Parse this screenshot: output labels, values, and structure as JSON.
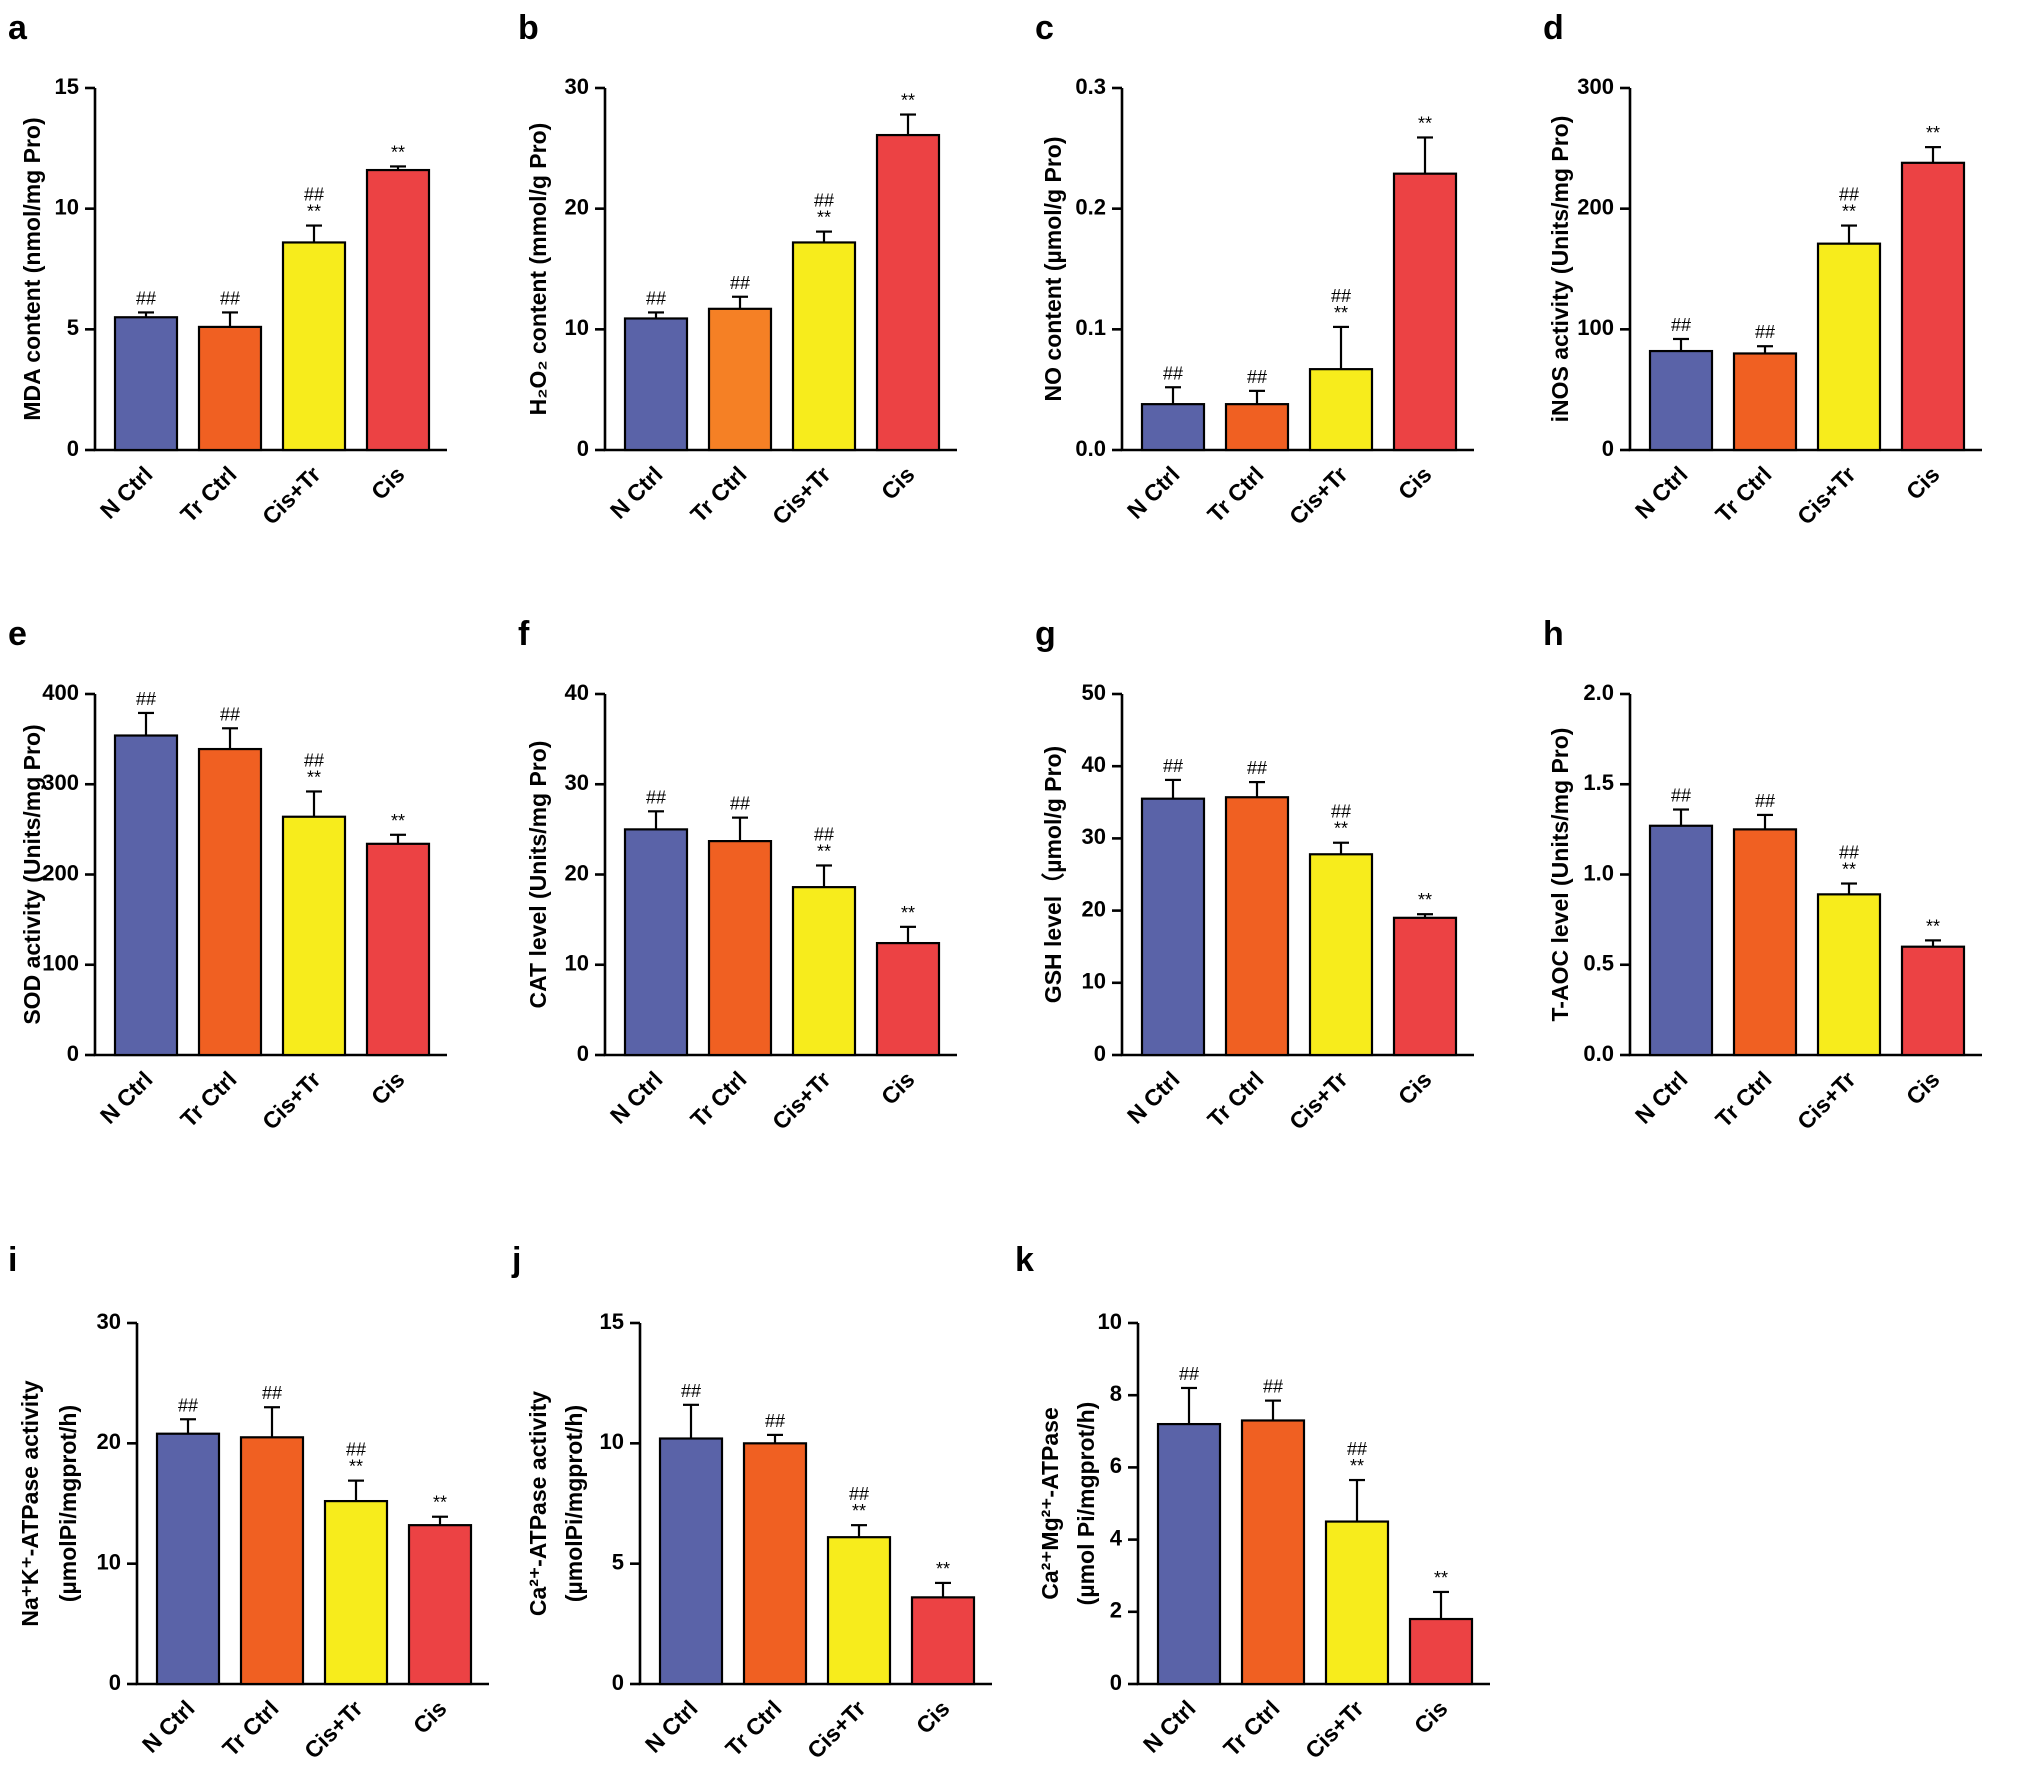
{
  "chart_data": [
    {
      "panel": "a",
      "type": "bar",
      "categories": [
        "N Ctrl",
        "Tr Ctrl",
        "Cis+Tr",
        "Cis"
      ],
      "values": [
        5.5,
        5.1,
        8.6,
        11.6
      ],
      "errors": [
        0.2,
        0.6,
        0.7,
        0.15
      ],
      "significance": [
        [
          "##"
        ],
        [
          "##"
        ],
        [
          "##",
          "**"
        ],
        [
          "**"
        ]
      ],
      "ylabel_lines": [
        "MDA content (nmol/mg Pro)"
      ],
      "ylim": [
        0,
        15
      ],
      "yticks": [
        "0",
        "5",
        "10",
        "15"
      ],
      "colors": [
        "#5a63a8",
        "#f06022",
        "#f7ec1c",
        "#ec4244"
      ]
    },
    {
      "panel": "b",
      "type": "bar",
      "categories": [
        "N Ctrl",
        "Tr Ctrl",
        "Cis+Tr",
        "Cis"
      ],
      "values": [
        10.9,
        11.7,
        17.2,
        26.1
      ],
      "errors": [
        0.5,
        1.0,
        0.9,
        1.7
      ],
      "significance": [
        [
          "##"
        ],
        [
          "##"
        ],
        [
          "##",
          "**"
        ],
        [
          "**"
        ]
      ],
      "ylabel_lines": [
        "H₂O₂ content (mmol/g Pro)"
      ],
      "ylim": [
        0,
        30
      ],
      "yticks": [
        "0",
        "10",
        "20",
        "30"
      ],
      "colors": [
        "#5a63a8",
        "#f58025",
        "#f7ec1c",
        "#ec4244"
      ]
    },
    {
      "panel": "c",
      "type": "bar",
      "categories": [
        "N Ctrl",
        "Tr Ctrl",
        "Cis+Tr",
        "Cis"
      ],
      "values": [
        0.038,
        0.038,
        0.067,
        0.229
      ],
      "errors": [
        0.014,
        0.011,
        0.035,
        0.03
      ],
      "significance": [
        [
          "##"
        ],
        [
          "##"
        ],
        [
          "##",
          "**"
        ],
        [
          "**"
        ]
      ],
      "ylabel_lines": [
        "NO content (µmol/g Pro)"
      ],
      "ylim": [
        0,
        0.3
      ],
      "yticks": [
        "0.0",
        "0.1",
        "0.2",
        "0.3"
      ],
      "colors": [
        "#5a63a8",
        "#f06022",
        "#f7ec1c",
        "#ec4244"
      ]
    },
    {
      "panel": "d",
      "type": "bar",
      "categories": [
        "N Ctrl",
        "Tr Ctrl",
        "Cis+Tr",
        "Cis"
      ],
      "values": [
        82,
        80,
        171,
        238
      ],
      "errors": [
        10,
        6,
        15,
        13
      ],
      "significance": [
        [
          "##"
        ],
        [
          "##"
        ],
        [
          "##",
          "**"
        ],
        [
          "**"
        ]
      ],
      "ylabel_lines": [
        "iNOS activity (Units/mg Pro)"
      ],
      "ylim": [
        0,
        300
      ],
      "yticks": [
        "0",
        "100",
        "200",
        "300"
      ],
      "colors": [
        "#5a63a8",
        "#f06022",
        "#f7ec1c",
        "#ec4244"
      ]
    },
    {
      "panel": "e",
      "type": "bar",
      "categories": [
        "N Ctrl",
        "Tr Ctrl",
        "Cis+Tr",
        "Cis"
      ],
      "values": [
        354,
        339,
        264,
        234
      ],
      "errors": [
        25,
        23,
        28,
        10
      ],
      "significance": [
        [
          "##"
        ],
        [
          "##"
        ],
        [
          "##",
          "**"
        ],
        [
          "**"
        ]
      ],
      "ylabel_lines": [
        "SOD activity (Units/mg Pro)"
      ],
      "ylim": [
        0,
        400
      ],
      "yticks": [
        "0",
        "100",
        "200",
        "300",
        "400"
      ],
      "colors": [
        "#5a63a8",
        "#f06022",
        "#f7ec1c",
        "#ec4244"
      ]
    },
    {
      "panel": "f",
      "type": "bar",
      "categories": [
        "N Ctrl",
        "Tr Ctrl",
        "Cis+Tr",
        "Cis"
      ],
      "values": [
        25.0,
        23.7,
        18.6,
        12.4
      ],
      "errors": [
        2.0,
        2.6,
        2.4,
        1.8
      ],
      "significance": [
        [
          "##"
        ],
        [
          "##"
        ],
        [
          "##",
          "**"
        ],
        [
          "**"
        ]
      ],
      "ylabel_lines": [
        "CAT level (Units/mg Pro)"
      ],
      "ylim": [
        0,
        40
      ],
      "yticks": [
        "0",
        "10",
        "20",
        "30",
        "40"
      ],
      "colors": [
        "#5a63a8",
        "#f06022",
        "#f7ec1c",
        "#ec4244"
      ]
    },
    {
      "panel": "g",
      "type": "bar",
      "categories": [
        "N Ctrl",
        "Tr Ctrl",
        "Cis+Tr",
        "Cis"
      ],
      "values": [
        35.5,
        35.7,
        27.8,
        19.0
      ],
      "errors": [
        2.6,
        2.1,
        1.6,
        0.5
      ],
      "significance": [
        [
          "##"
        ],
        [
          "##"
        ],
        [
          "##",
          "**"
        ],
        [
          "**"
        ]
      ],
      "ylabel_lines": [
        "GSH level（µmol/g Pro)"
      ],
      "ylim": [
        0,
        50
      ],
      "yticks": [
        "0",
        "10",
        "20",
        "30",
        "40",
        "50"
      ],
      "colors": [
        "#5a63a8",
        "#f06022",
        "#f7ec1c",
        "#ec4244"
      ]
    },
    {
      "panel": "h",
      "type": "bar",
      "categories": [
        "N Ctrl",
        "Tr Ctrl",
        "Cis+Tr",
        "Cis"
      ],
      "values": [
        1.27,
        1.25,
        0.89,
        0.6
      ],
      "errors": [
        0.09,
        0.08,
        0.06,
        0.035
      ],
      "significance": [
        [
          "##"
        ],
        [
          "##"
        ],
        [
          "##",
          "**"
        ],
        [
          "**"
        ]
      ],
      "ylabel_lines": [
        "T-AOC level (Units/mg Pro)"
      ],
      "ylim": [
        0,
        2.0
      ],
      "yticks": [
        "0.0",
        "0.5",
        "1.0",
        "1.5",
        "2.0"
      ],
      "colors": [
        "#5a63a8",
        "#f06022",
        "#f7ec1c",
        "#ec4244"
      ]
    },
    {
      "panel": "i",
      "type": "bar",
      "categories": [
        "N Ctrl",
        "Tr Ctrl",
        "Cis+Tr",
        "Cis"
      ],
      "values": [
        20.8,
        20.5,
        15.2,
        13.2
      ],
      "errors": [
        1.2,
        2.5,
        1.7,
        0.7
      ],
      "significance": [
        [
          "##"
        ],
        [
          "##"
        ],
        [
          "##",
          "**"
        ],
        [
          "**"
        ]
      ],
      "ylabel_lines": [
        "Na⁺K⁺-ATPase activity",
        "(µmolPi/mgprot/h)"
      ],
      "ylim": [
        0,
        30
      ],
      "yticks": [
        "0",
        "10",
        "20",
        "30"
      ],
      "colors": [
        "#5a63a8",
        "#f06022",
        "#f7ec1c",
        "#ec4244"
      ]
    },
    {
      "panel": "j",
      "type": "bar",
      "categories": [
        "N Ctrl",
        "Tr Ctrl",
        "Cis+Tr",
        "Cis"
      ],
      "values": [
        10.2,
        10.0,
        6.1,
        3.6
      ],
      "errors": [
        1.4,
        0.35,
        0.5,
        0.6
      ],
      "significance": [
        [
          "##"
        ],
        [
          "##"
        ],
        [
          "##",
          "**"
        ],
        [
          "**"
        ]
      ],
      "ylabel_lines": [
        "Ca²⁺-ATPase activity",
        "(µmolPi/mgprot/h)"
      ],
      "ylim": [
        0,
        15
      ],
      "yticks": [
        "0",
        "5",
        "10",
        "15"
      ],
      "colors": [
        "#5a63a8",
        "#f06022",
        "#f7ec1c",
        "#ec4244"
      ]
    },
    {
      "panel": "k",
      "type": "bar",
      "categories": [
        "N Ctrl",
        "Tr Ctrl",
        "Cis+Tr",
        "Cis"
      ],
      "values": [
        7.2,
        7.3,
        4.5,
        1.8
      ],
      "errors": [
        1.0,
        0.55,
        1.15,
        0.75
      ],
      "significance": [
        [
          "##"
        ],
        [
          "##"
        ],
        [
          "##",
          "**"
        ],
        [
          "**"
        ]
      ],
      "ylabel_lines": [
        "Ca²⁺Mg²⁺-ATPase",
        "(µmol Pi/mgprot/h)"
      ],
      "ylim": [
        0,
        10
      ],
      "yticks": [
        "0",
        "2",
        "4",
        "6",
        "8",
        "10"
      ],
      "colors": [
        "#5a63a8",
        "#f06022",
        "#f7ec1c",
        "#ec4244"
      ]
    }
  ]
}
